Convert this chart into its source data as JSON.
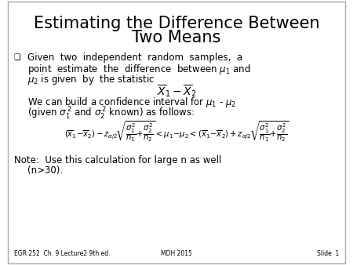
{
  "title_line1": "Estimating the Difference Between",
  "title_line2": "Two Means",
  "title_fontsize": 15,
  "body_fontsize": 8.5,
  "formula_fontsize": 8.5,
  "small_fontsize": 7,
  "footer_fontsize": 5.5,
  "background_color": "#ffffff",
  "text_color": "#000000",
  "footer_left": "EGR 252  Ch. 9 Lecture2 9th ed.",
  "footer_center": "MDH 2015",
  "footer_right": "Slide  1"
}
